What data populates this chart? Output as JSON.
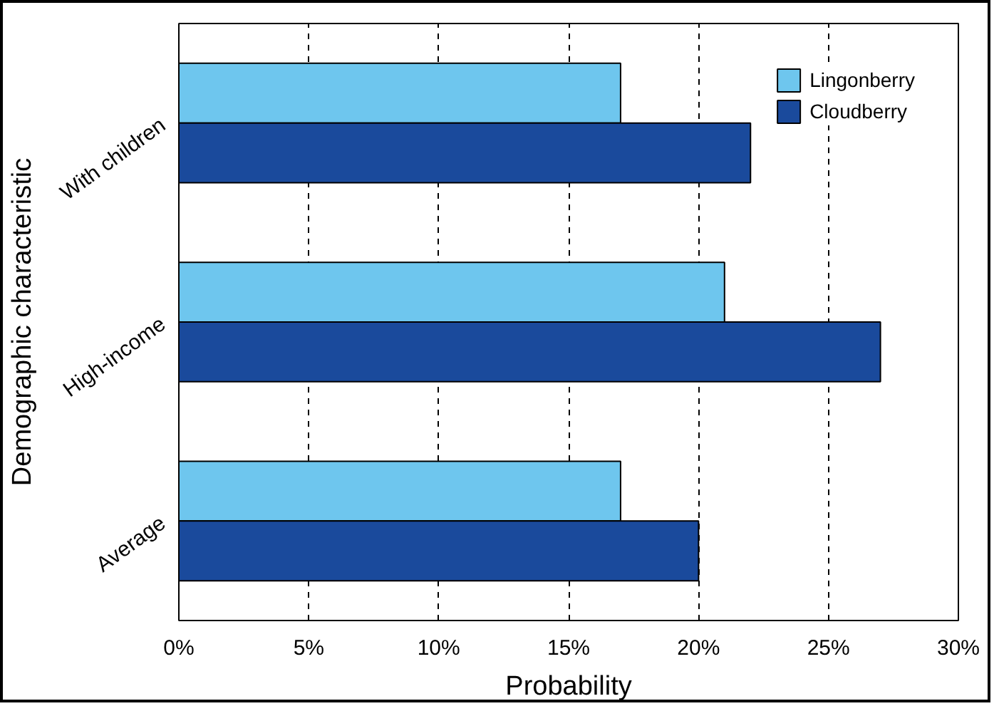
{
  "chart_data": {
    "type": "bar",
    "orientation": "horizontal",
    "xlabel": "Probability",
    "ylabel": "Demographic characteristic",
    "categories": [
      "With children",
      "High-income",
      "Average"
    ],
    "series": [
      {
        "name": "Lingonberry",
        "color": "#6ec6ee",
        "values": [
          17,
          21,
          17
        ]
      },
      {
        "name": "Cloudberry",
        "color": "#1a4a9c",
        "values": [
          22,
          27,
          20
        ]
      }
    ],
    "xlim": [
      0,
      30
    ],
    "xticks": [
      {
        "value": 0,
        "label": "0%"
      },
      {
        "value": 5,
        "label": "5%"
      },
      {
        "value": 10,
        "label": "10%"
      },
      {
        "value": 15,
        "label": "15%"
      },
      {
        "value": 20,
        "label": "20%"
      },
      {
        "value": 25,
        "label": "25%"
      },
      {
        "value": 30,
        "label": "30%"
      }
    ],
    "grid": "x",
    "legend": "top right"
  }
}
